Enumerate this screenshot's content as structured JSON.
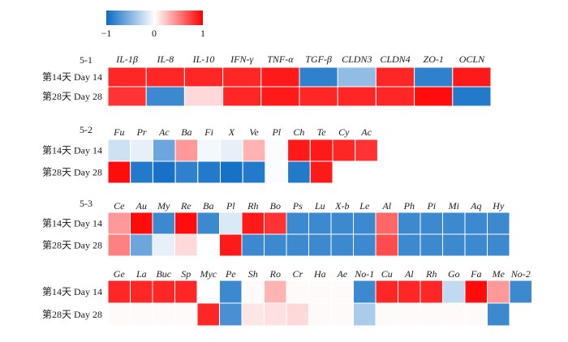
{
  "colorbar": {
    "ticks": [
      "−1",
      "0",
      "1"
    ],
    "colors": {
      "negative": "#0b6bc4",
      "neutral": "#ffffff",
      "positive": "#ff0000"
    }
  },
  "chart_data": [
    {
      "type": "heatmap",
      "title": "5-1",
      "columns": [
        "IL-1β",
        "IL-8",
        "IL-10",
        "IFN-γ",
        "TNF-α",
        "TGF-β",
        "CLDN3",
        "CLDN4",
        "ZO-1",
        "OCLN"
      ],
      "rows": [
        "第14天 Day 14",
        "第28天 Day 28"
      ],
      "values": [
        [
          0.85,
          0.85,
          0.85,
          0.85,
          0.9,
          -0.85,
          -0.45,
          0.85,
          -0.85,
          0.9
        ],
        [
          0.8,
          -0.8,
          0.15,
          0.85,
          0.9,
          0.85,
          0.85,
          0.85,
          0.95,
          -0.9
        ]
      ]
    },
    {
      "type": "heatmap",
      "title": "5-2",
      "columns": [
        "Fu",
        "Pr",
        "Ac",
        "Ba",
        "Fi",
        "X",
        "Ve",
        "Pl",
        "Ch",
        "Te",
        "Cy",
        "Ac"
      ],
      "rows": [
        "第14天 Day 14",
        "第28天 Day 28"
      ],
      "values": [
        [
          -0.2,
          -0.1,
          -0.6,
          0.4,
          -0.05,
          -0.1,
          0.3,
          -0.02,
          0.9,
          0.9,
          0.85,
          0.8
        ],
        [
          0.95,
          -0.9,
          -0.95,
          -0.85,
          -0.9,
          -0.95,
          -0.9,
          -0.02,
          -0.9,
          0.9,
          null,
          null
        ]
      ]
    },
    {
      "type": "heatmap",
      "title": "5-3",
      "columns": [
        "Ce",
        "Au",
        "My",
        "Re",
        "Ba",
        "Pl",
        "Rh",
        "Bo",
        "Ps",
        "Lu",
        "X-b",
        "Le",
        "Al",
        "Ph",
        "Pi",
        "Mi",
        "Aq",
        "Hy"
      ],
      "rows": [
        "第14天 Day 14",
        "第28天 Day 28"
      ],
      "values": [
        [
          0.4,
          0.95,
          -0.8,
          0.95,
          -0.8,
          -0.15,
          0.9,
          0.8,
          -0.8,
          -0.8,
          -0.8,
          -0.8,
          0.6,
          -0.8,
          -0.8,
          -0.8,
          -0.8,
          -0.8
        ],
        [
          0.5,
          -0.6,
          -0.1,
          0.15,
          null,
          0.9,
          -0.8,
          -0.8,
          -0.8,
          -0.8,
          -0.8,
          -0.8,
          0.7,
          -0.8,
          -0.8,
          -0.8,
          -0.8,
          -0.8
        ]
      ]
    },
    {
      "type": "heatmap",
      "title": "",
      "columns": [
        "Ge",
        "La",
        "Buc",
        "Sp",
        "Myc",
        "Pe",
        "Sh",
        "Ro",
        "Cr",
        "Ha",
        "Ae",
        "No-1",
        "Cu",
        "Al",
        "Rh",
        "Go",
        "Fa",
        "Me",
        "No-2"
      ],
      "rows": [
        "第14天 Day 14",
        "第28天 Day 28"
      ],
      "values": [
        [
          0.85,
          0.85,
          0.85,
          0.85,
          null,
          -0.8,
          0.02,
          0.3,
          0.02,
          0.02,
          0.02,
          -0.8,
          0.85,
          0.85,
          0.85,
          -0.25,
          0.95,
          0.4,
          -0.8
        ],
        [
          0.02,
          0.02,
          0.02,
          0.02,
          0.85,
          -0.75,
          0.1,
          0.12,
          0.15,
          0.02,
          0.02,
          -0.35,
          0.02,
          0.02,
          0.02,
          0.02,
          0.02,
          -0.8,
          null
        ]
      ]
    }
  ]
}
